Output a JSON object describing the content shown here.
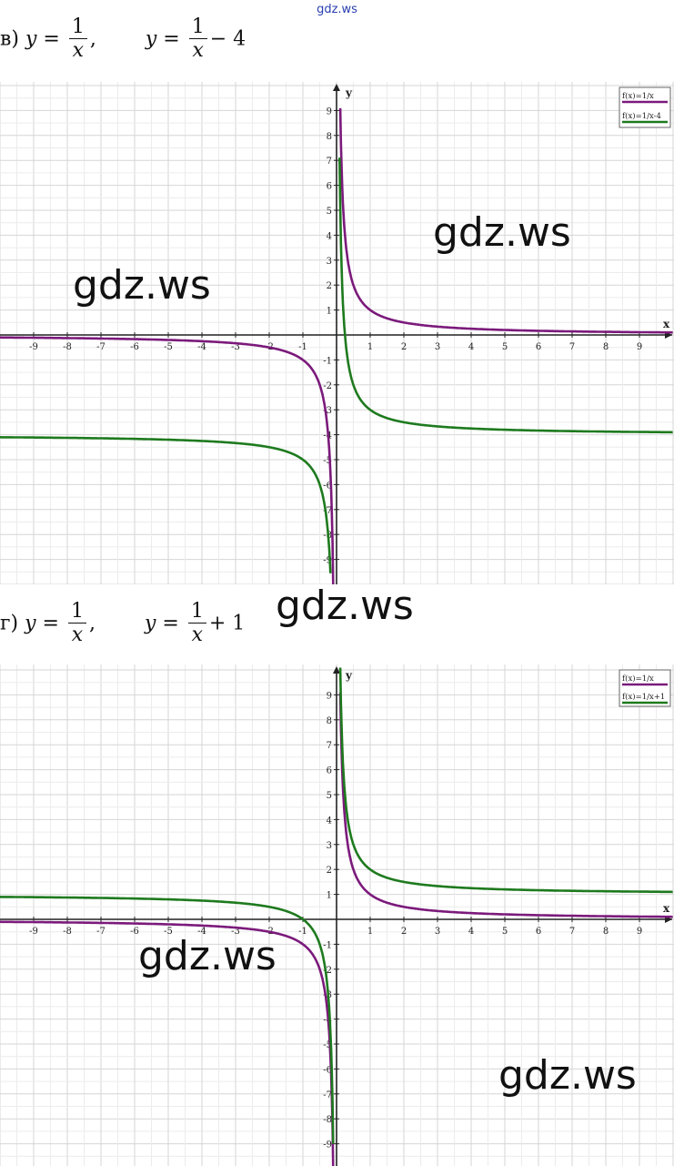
{
  "site_label": "gdz.ws",
  "watermark": "gdz.ws",
  "tasks": [
    {
      "letter": "в)",
      "eq1": {
        "lhs": "y =",
        "num": "1",
        "den": "x",
        "suffix": ","
      },
      "eq2": {
        "lhs": "y =",
        "num": "1",
        "den": "x",
        "suffix": "− 4"
      }
    },
    {
      "letter": "г)",
      "eq1": {
        "lhs": "y =",
        "num": "1",
        "den": "x",
        "suffix": ","
      },
      "eq2": {
        "lhs": "y =",
        "num": "1",
        "den": "x",
        "suffix": "+ 1"
      }
    }
  ],
  "chart_data": [
    {
      "type": "line",
      "xlabel": "x",
      "ylabel": "y",
      "xlim": [
        -10,
        10
      ],
      "ylim": [
        -10,
        10
      ],
      "x_ticks": [
        "-9",
        "-8",
        "-7",
        "-6",
        "-5",
        "-4",
        "-3",
        "-2",
        "-1",
        "1",
        "2",
        "3",
        "4",
        "5",
        "6",
        "7",
        "8",
        "9"
      ],
      "y_ticks": [
        "9",
        "8",
        "7",
        "6",
        "5",
        "4",
        "3",
        "2",
        "1",
        "-1",
        "-2",
        "-3",
        "-4",
        "-5",
        "-6",
        "-7",
        "-8",
        "-9"
      ],
      "grid": true,
      "legend_position": "top-right",
      "series": [
        {
          "name": "f(x)=1/x",
          "color": "#7b1a7b",
          "formula": "1/x",
          "shift": 0
        },
        {
          "name": "f(x)=1/x-4",
          "color": "#1e7a1e",
          "formula": "1/x - 4",
          "shift": -4
        }
      ]
    },
    {
      "type": "line",
      "xlabel": "x",
      "ylabel": "y",
      "xlim": [
        -10,
        10
      ],
      "ylim": [
        -10,
        10
      ],
      "x_ticks": [
        "-9",
        "-8",
        "-7",
        "-6",
        "-5",
        "-4",
        "-3",
        "-2",
        "-1",
        "1",
        "2",
        "3",
        "4",
        "5",
        "6",
        "7",
        "8",
        "9"
      ],
      "y_ticks": [
        "9",
        "8",
        "7",
        "6",
        "5",
        "4",
        "3",
        "2",
        "1",
        "-1",
        "-2",
        "-3",
        "-4",
        "-5",
        "-6",
        "-7",
        "-8",
        "-9"
      ],
      "grid": true,
      "legend_position": "top-right",
      "series": [
        {
          "name": "f(x)=1/x",
          "color": "#7b1a7b",
          "formula": "1/x",
          "shift": 0
        },
        {
          "name": "f(x)=1/x+1",
          "color": "#1e7a1e",
          "formula": "1/x + 1",
          "shift": 1
        }
      ]
    }
  ]
}
